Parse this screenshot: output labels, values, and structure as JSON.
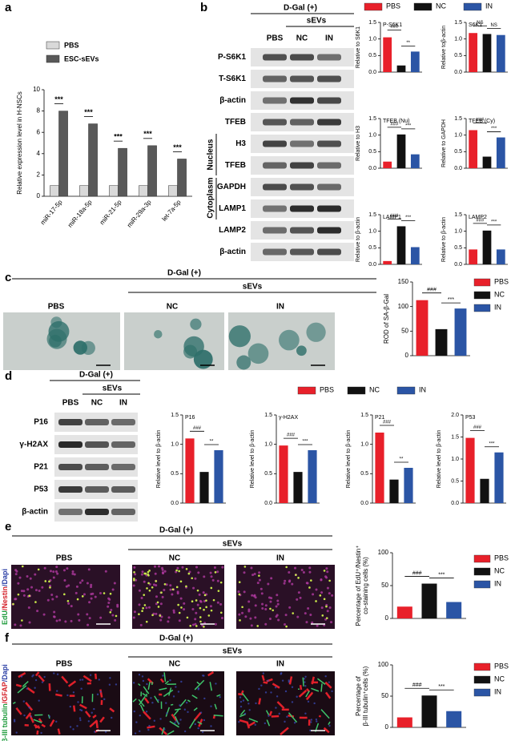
{
  "figure": {
    "panel_letters": [
      "a",
      "b",
      "c",
      "d",
      "e",
      "f"
    ],
    "b_blot": {
      "condition": "D-Gal (+)",
      "group": "sEVs",
      "columns": [
        "PBS",
        "NC",
        "IN"
      ],
      "rows": [
        "P-S6K1",
        "T-S6K1",
        "β-actin",
        "TFEB",
        "H3",
        "TFEB",
        "GAPDH",
        "LAMP1",
        "LAMP2",
        "β-actin"
      ],
      "compartments": [
        "Nucleus",
        "Cytoplasm"
      ]
    },
    "c_images": {
      "condition": "D-Gal (+)",
      "group": "sEVs",
      "columns": [
        "PBS",
        "NC",
        "IN"
      ]
    },
    "d_blot": {
      "condition": "D-Gal (+)",
      "group": "sEVs",
      "columns": [
        "PBS",
        "NC",
        "IN"
      ],
      "rows": [
        "P16",
        "γ-H2AX",
        "P21",
        "P53",
        "β-actin"
      ]
    },
    "e_images": {
      "condition": "D-Gal (+)",
      "group": "sEVs",
      "columns": [
        "PBS",
        "NC",
        "IN"
      ],
      "stain": [
        "EdU",
        "/Nestin",
        "/Dapi"
      ]
    },
    "f_images": {
      "condition": "D-Gal (+)",
      "group": "sEVs",
      "columns": [
        "PBS",
        "NC",
        "IN"
      ],
      "stain": [
        "β-III tubulin",
        "/GFAP",
        "/Dapi"
      ]
    }
  },
  "legends": {
    "b": [
      {
        "name": "PBS",
        "color": "#e8202a"
      },
      {
        "name": "NC",
        "color": "#111111"
      },
      {
        "name": "IN",
        "color": "#2b55a5"
      }
    ],
    "c": [
      {
        "name": "PBS",
        "color": "#e8202a"
      },
      {
        "name": "NC",
        "color": "#111111"
      },
      {
        "name": "IN",
        "color": "#2b55a5"
      }
    ],
    "d": [
      {
        "name": "PBS",
        "color": "#e8202a"
      },
      {
        "name": "NC",
        "color": "#111111"
      },
      {
        "name": "IN",
        "color": "#2b55a5"
      }
    ],
    "e": [
      {
        "name": "PBS",
        "color": "#e8202a"
      },
      {
        "name": "NC",
        "color": "#111111"
      },
      {
        "name": "IN",
        "color": "#2b55a5"
      }
    ],
    "f": [
      {
        "name": "PBS",
        "color": "#e8202a"
      },
      {
        "name": "NC",
        "color": "#111111"
      },
      {
        "name": "IN",
        "color": "#2b55a5"
      }
    ]
  },
  "chart_data": [
    {
      "type": "bar",
      "ylabel": "Relative expression level in H-NSCs",
      "categories": [
        "miR-17-5p",
        "miR-18a-5p",
        "miR-21-5p",
        "miR-29a-3p",
        "let-7a-5p"
      ],
      "series": [
        {
          "name": "PBS",
          "color": "#d9d9d9",
          "values": [
            1,
            1,
            1,
            1,
            1
          ]
        },
        {
          "name": "ESC-sEVs",
          "color": "#595959",
          "values": [
            8.0,
            6.8,
            4.5,
            4.75,
            3.5
          ]
        }
      ],
      "ylim": [
        0,
        10
      ],
      "yticks": [
        0,
        2,
        4,
        6,
        8,
        10
      ],
      "annotations": [
        "***",
        "***",
        "***",
        "***",
        "***"
      ]
    },
    {
      "type": "bar",
      "title": "P-S6K1",
      "ylabel": "Relative to S6K1",
      "values": [
        1.05,
        0.2,
        0.62
      ],
      "colors": [
        "#e8202a",
        "#111111",
        "#2b55a5"
      ],
      "ylim": [
        0,
        1.5
      ],
      "yticks": [
        {
          "value": 0,
          "label": "0.0"
        },
        0.5,
        {
          "value": 1,
          "label": "1.0"
        },
        1.5
      ],
      "annotations": [
        "###",
        "**"
      ]
    },
    {
      "type": "bar",
      "title": "S6K1",
      "ylabel": "Relative toβ-actin",
      "values": [
        1.18,
        1.15,
        1.12
      ],
      "colors": [
        "#e8202a",
        "#111111",
        "#2b55a5"
      ],
      "ylim": [
        0,
        1.5
      ],
      "yticks": [
        {
          "value": 0,
          "label": "0.0"
        },
        0.5,
        {
          "value": 1,
          "label": "1.0"
        },
        1.5
      ],
      "annotations": [
        "NS",
        "NS"
      ]
    },
    {
      "type": "bar",
      "title": "TFEB (Nu)",
      "ylabel": "Relative to H3",
      "values": [
        0.2,
        1.02,
        0.42
      ],
      "colors": [
        "#e8202a",
        "#111111",
        "#2b55a5"
      ],
      "ylim": [
        0,
        1.5
      ],
      "yticks": [
        {
          "value": 0,
          "label": "0.0"
        },
        0.5,
        {
          "value": 1,
          "label": "1.0"
        },
        1.5
      ],
      "annotations": [
        "###",
        "***"
      ]
    },
    {
      "type": "bar",
      "title": "TFEB (Cy)",
      "ylabel": "Relative to GAPDH",
      "values": [
        1.15,
        0.35,
        0.93
      ],
      "colors": [
        "#e8202a",
        "#111111",
        "#2b55a5"
      ],
      "ylim": [
        0,
        1.5
      ],
      "yticks": [
        {
          "value": 0,
          "label": "0.0"
        },
        0.5,
        {
          "value": 1,
          "label": "1.0"
        },
        1.5
      ],
      "annotations": [
        "###",
        "***"
      ]
    },
    {
      "type": "bar",
      "title": "LAMP1",
      "ylabel": "Relative to β-actin",
      "values": [
        0.1,
        1.15,
        0.52
      ],
      "colors": [
        "#e8202a",
        "#111111",
        "#2b55a5"
      ],
      "ylim": [
        0,
        1.5
      ],
      "yticks": [
        {
          "value": 0,
          "label": "0.0"
        },
        0.5,
        {
          "value": 1,
          "label": "1.0"
        },
        1.5
      ],
      "annotations": [
        "###",
        "***"
      ]
    },
    {
      "type": "bar",
      "title": "LAMP2",
      "ylabel": "Relative to β-actin",
      "values": [
        0.45,
        1.02,
        0.45
      ],
      "colors": [
        "#e8202a",
        "#111111",
        "#2b55a5"
      ],
      "ylim": [
        0,
        1.5
      ],
      "yticks": [
        {
          "value": 0,
          "label": "0.0"
        },
        0.5,
        {
          "value": 1,
          "label": "1.0"
        },
        1.5
      ],
      "annotations": [
        "###",
        "***"
      ]
    },
    {
      "type": "bar",
      "ylabel": "ROD of SA-β-Gal",
      "values": [
        113,
        54,
        96
      ],
      "colors": [
        "#e8202a",
        "#111111",
        "#2b55a5"
      ],
      "ylim": [
        0,
        150
      ],
      "yticks": [
        0,
        50,
        100,
        150
      ],
      "annotations": [
        "###",
        "***"
      ]
    },
    {
      "type": "bar",
      "title": "P16",
      "ylabel": "Relative level to β-actin",
      "values": [
        1.1,
        0.53,
        0.9
      ],
      "colors": [
        "#e8202a",
        "#111111",
        "#2b55a5"
      ],
      "ylim": [
        0,
        1.5
      ],
      "yticks": [
        {
          "value": 0,
          "label": "0.0"
        },
        0.5,
        {
          "value": 1,
          "label": "1.0"
        },
        1.5
      ],
      "annotations": [
        "###",
        "**"
      ]
    },
    {
      "type": "bar",
      "title": "γ-H2AX",
      "ylabel": "Relative level to β-actin",
      "values": [
        0.98,
        0.53,
        0.9
      ],
      "colors": [
        "#e8202a",
        "#111111",
        "#2b55a5"
      ],
      "ylim": [
        0,
        1.5
      ],
      "yticks": [
        {
          "value": 0,
          "label": "0.0"
        },
        0.5,
        {
          "value": 1,
          "label": "1.0"
        },
        1.5
      ],
      "annotations": [
        "###",
        "***"
      ]
    },
    {
      "type": "bar",
      "title": "P21",
      "ylabel": "Relative level to β-actin",
      "values": [
        1.2,
        0.4,
        0.6
      ],
      "colors": [
        "#e8202a",
        "#111111",
        "#2b55a5"
      ],
      "ylim": [
        0,
        1.5
      ],
      "yticks": [
        {
          "value": 0,
          "label": "0.0"
        },
        0.5,
        {
          "value": 1,
          "label": "1.0"
        },
        1.5
      ],
      "annotations": [
        "###",
        "**"
      ]
    },
    {
      "type": "bar",
      "title": "P53",
      "ylabel": "Relative level to β-actin",
      "values": [
        1.48,
        0.55,
        1.15
      ],
      "colors": [
        "#e8202a",
        "#111111",
        "#2b55a5"
      ],
      "ylim": [
        0,
        2
      ],
      "yticks": [
        {
          "value": 0,
          "label": "0.0"
        },
        0.5,
        {
          "value": 1,
          "label": "1.0"
        },
        1.5,
        {
          "value": 2,
          "label": "2.0"
        }
      ],
      "annotations": [
        "###",
        "***"
      ]
    },
    {
      "type": "bar",
      "ylabel": [
        "Percentage of EdU⁺/Nestin⁺",
        "co-staining cells (%)"
      ],
      "values": [
        18,
        53,
        25
      ],
      "colors": [
        "#e8202a",
        "#111111",
        "#2b55a5"
      ],
      "ylim": [
        0,
        100
      ],
      "yticks": [
        0,
        50,
        100
      ],
      "annotations": [
        "###",
        "***"
      ]
    },
    {
      "type": "bar",
      "ylabel": [
        "Percentage of",
        "β-III tubulin⁺cells (%)"
      ],
      "values": [
        16,
        51,
        26
      ],
      "colors": [
        "#e8202a",
        "#111111",
        "#2b55a5"
      ],
      "ylim": [
        0,
        100
      ],
      "yticks": [
        0,
        50,
        100
      ],
      "annotations": [
        "###",
        "***"
      ]
    }
  ]
}
